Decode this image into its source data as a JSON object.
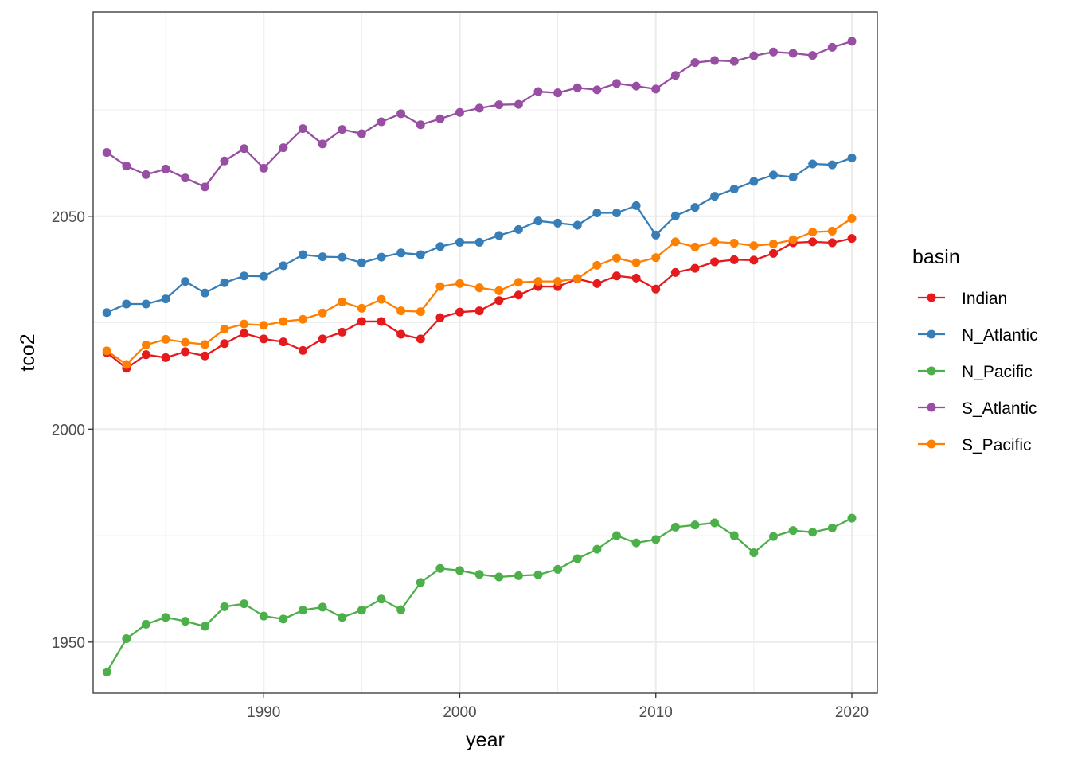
{
  "chart_data": {
    "type": "line",
    "xlabel": "year",
    "ylabel": "tco2",
    "xlim": [
      1981.3,
      2021.3
    ],
    "ylim": [
      1938,
      2098
    ],
    "x_ticks": [
      1990,
      2000,
      2010,
      2020
    ],
    "y_ticks": [
      1950,
      2000,
      2050
    ],
    "x_tick_labels": [
      "1990",
      "2000",
      "2010",
      "2020"
    ],
    "y_tick_labels": [
      "1950",
      "2000",
      "2050"
    ],
    "grid": true,
    "legend_position": "right",
    "legend_title": "basin",
    "x": [
      1982,
      1983,
      1984,
      1985,
      1986,
      1987,
      1988,
      1989,
      1990,
      1991,
      1992,
      1993,
      1994,
      1995,
      1996,
      1997,
      1998,
      1999,
      2000,
      2001,
      2002,
      2003,
      2004,
      2005,
      2006,
      2007,
      2008,
      2009,
      2010,
      2011,
      2012,
      2013,
      2014,
      2015,
      2016,
      2017,
      2018,
      2019,
      2020
    ],
    "series": [
      {
        "name": "Indian",
        "color": "#e41a1c",
        "values": [
          2018.0,
          2014.3,
          2017.5,
          2016.8,
          2018.2,
          2017.2,
          2020.1,
          2022.5,
          2021.2,
          2020.5,
          2018.5,
          2021.2,
          2022.8,
          2025.3,
          2025.3,
          2022.3,
          2021.2,
          2026.2,
          2027.5,
          2027.8,
          2030.2,
          2031.5,
          2033.5,
          2033.5,
          2035.3,
          2034.2,
          2036.0,
          2035.5,
          2032.9,
          2036.8,
          2037.8,
          2039.3,
          2039.8,
          2039.7,
          2041.3,
          2043.8,
          2044.0,
          2043.8,
          2044.8
        ]
      },
      {
        "name": "N_Atlantic",
        "color": "#377eb8",
        "values": [
          2027.4,
          2029.4,
          2029.4,
          2030.6,
          2034.7,
          2032.0,
          2034.4,
          2036.0,
          2035.9,
          2038.4,
          2041.0,
          2040.5,
          2040.4,
          2039.1,
          2040.4,
          2041.4,
          2041.0,
          2042.9,
          2043.9,
          2043.9,
          2045.5,
          2046.9,
          2048.9,
          2048.4,
          2047.9,
          2050.8,
          2050.8,
          2052.5,
          2045.6,
          2050.1,
          2052.1,
          2054.7,
          2056.4,
          2058.2,
          2059.7,
          2059.2,
          2062.3,
          2062.1,
          2063.7
        ]
      },
      {
        "name": "N_Pacific",
        "color": "#4daf4a",
        "values": [
          1943.0,
          1950.8,
          1954.2,
          1955.8,
          1954.9,
          1953.7,
          1958.3,
          1959.0,
          1956.1,
          1955.4,
          1957.5,
          1958.2,
          1955.8,
          1957.5,
          1960.1,
          1957.6,
          1964.0,
          1967.3,
          1966.8,
          1965.9,
          1965.3,
          1965.6,
          1965.8,
          1967.1,
          1969.6,
          1971.8,
          1975.0,
          1973.3,
          1974.1,
          1977.0,
          1977.5,
          1978.0,
          1975.0,
          1971.0,
          1974.8,
          1976.2,
          1975.8,
          1976.8,
          1979.1
        ]
      },
      {
        "name": "S_Atlantic",
        "color": "#984ea3",
        "values": [
          2065.0,
          2061.8,
          2059.8,
          2061.1,
          2059.0,
          2056.9,
          2063.0,
          2065.9,
          2061.3,
          2066.1,
          2070.6,
          2067.0,
          2070.4,
          2069.4,
          2072.2,
          2074.1,
          2071.5,
          2072.9,
          2074.4,
          2075.4,
          2076.2,
          2076.3,
          2079.3,
          2079.0,
          2080.2,
          2079.7,
          2081.2,
          2080.6,
          2079.9,
          2083.1,
          2086.1,
          2086.6,
          2086.4,
          2087.7,
          2088.6,
          2088.3,
          2087.8,
          2089.7,
          2091.1
        ]
      },
      {
        "name": "S_Pacific",
        "color": "#ff7f00",
        "values": [
          2018.4,
          2015.2,
          2019.8,
          2021.1,
          2020.4,
          2019.9,
          2023.5,
          2024.7,
          2024.4,
          2025.3,
          2025.8,
          2027.3,
          2029.9,
          2028.4,
          2030.5,
          2027.8,
          2027.6,
          2033.5,
          2034.2,
          2033.2,
          2032.5,
          2034.5,
          2034.7,
          2034.7,
          2035.4,
          2038.5,
          2040.2,
          2039.1,
          2040.3,
          2044.0,
          2042.8,
          2044.0,
          2043.7,
          2043.1,
          2043.5,
          2044.5,
          2046.3,
          2046.5,
          2049.5
        ]
      }
    ]
  }
}
